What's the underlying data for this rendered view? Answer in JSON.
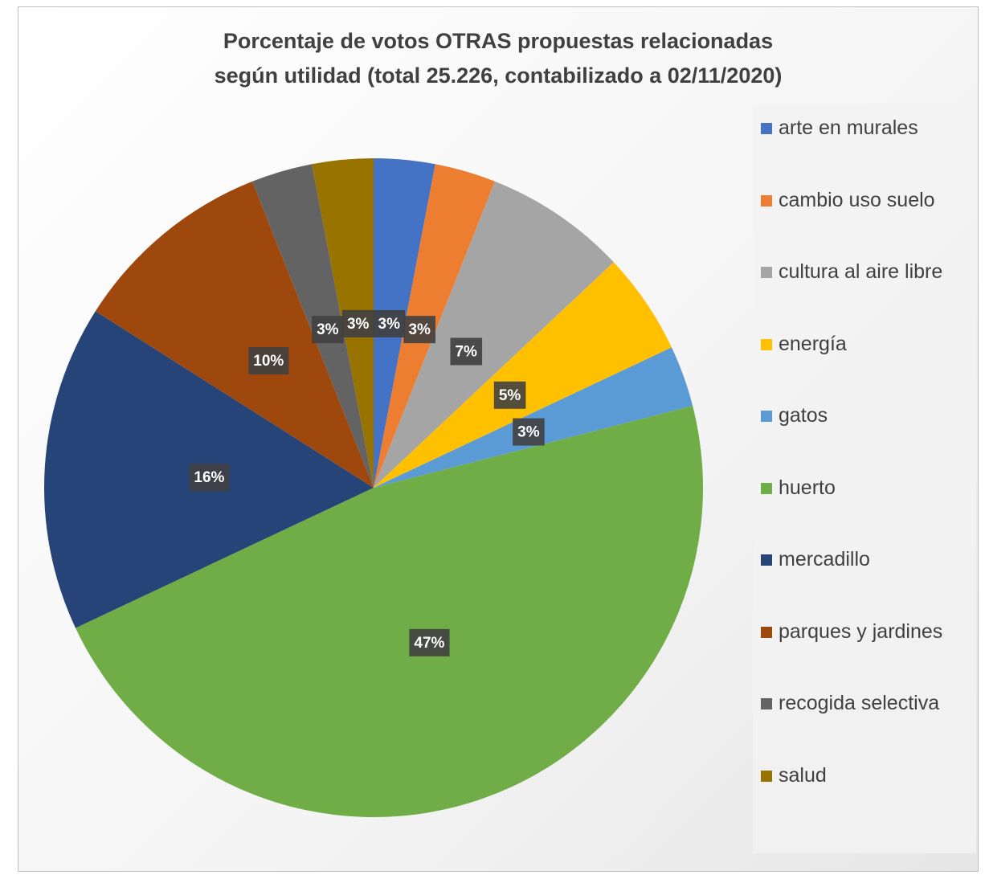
{
  "chart_data": {
    "type": "pie",
    "title": [
      "Porcentaje de votos OTRAS propuestas relacionadas",
      "según utilidad (total 25.226, contabilizado a 02/11/2020)"
    ],
    "categories": [
      "arte en murales",
      "cambio uso suelo",
      "cultura al aire libre",
      "energía",
      "gatos",
      "huerto",
      "mercadillo",
      "parques y jardines",
      "recogida selectiva",
      "salud"
    ],
    "values": [
      3,
      3,
      7,
      5,
      3,
      47,
      16,
      10,
      3,
      3
    ],
    "value_labels": [
      "3%",
      "3%",
      "7%",
      "5%",
      "3%",
      "47%",
      "16%",
      "10%",
      "3%",
      "3%"
    ],
    "colors": [
      "#4472c4",
      "#ed7d31",
      "#a5a5a5",
      "#ffc000",
      "#5b9bd5",
      "#70ad47",
      "#264478",
      "#9e480e",
      "#636363",
      "#997300"
    ],
    "legend": "right"
  }
}
